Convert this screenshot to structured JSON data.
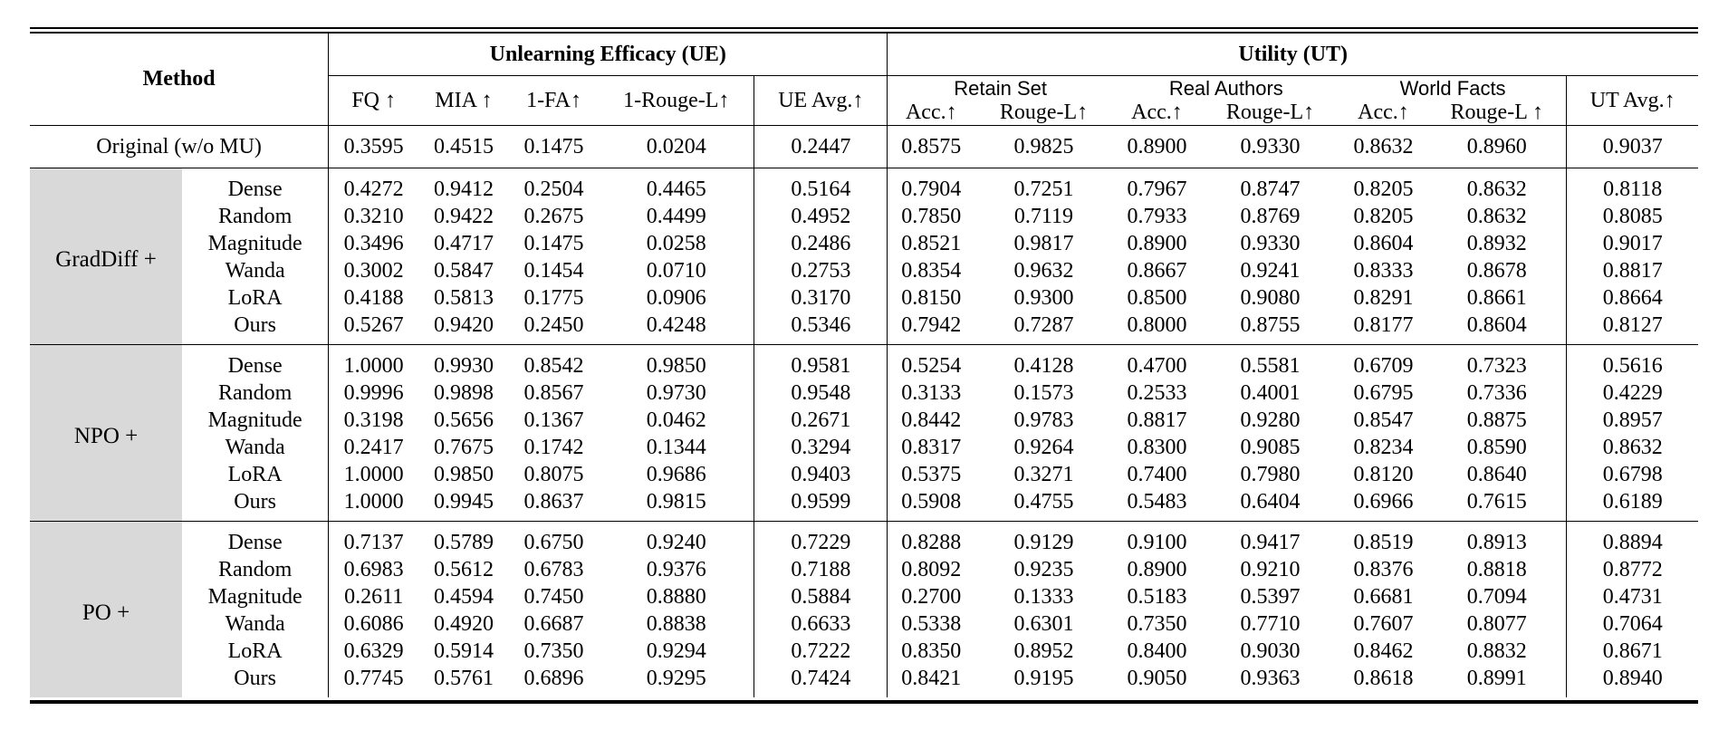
{
  "header": {
    "method": "Method",
    "ue_group": "Unlearning Efficacy (UE)",
    "ut_group": "Utility (UT)",
    "ue_cols": [
      "FQ ↑",
      "MIA ↑",
      "1-FA↑",
      "1-Rouge-L↑",
      "UE Avg.↑"
    ],
    "ut_groups": [
      "Retain Set",
      "Real Authors",
      "World Facts"
    ],
    "ut_subcols": [
      "Acc.↑",
      "Rouge-L↑",
      "Acc.↑",
      "Rouge-L↑",
      "Acc.↑",
      "Rouge-L ↑"
    ],
    "ut_avg": "UT Avg.↑"
  },
  "original": {
    "label": "Original (w/o MU)",
    "values": [
      "0.3595",
      "0.4515",
      "0.1475",
      "0.0204",
      "0.2447",
      "0.8575",
      "0.9825",
      "0.8900",
      "0.9330",
      "0.8632",
      "0.8960",
      "0.9037"
    ]
  },
  "blocks": [
    {
      "prefix": "GradDiff +",
      "rows": [
        {
          "variant": "Dense",
          "values": [
            "0.4272",
            "0.9412",
            "0.2504",
            "0.4465",
            "0.5164",
            "0.7904",
            "0.7251",
            "0.7967",
            "0.8747",
            "0.8205",
            "0.8632",
            "0.8118"
          ],
          "bold": []
        },
        {
          "variant": "Random",
          "values": [
            "0.3210",
            "0.9422",
            "0.2675",
            "0.4499",
            "0.4952",
            "0.7850",
            "0.7119",
            "0.7933",
            "0.8769",
            "0.8205",
            "0.8632",
            "0.8085"
          ],
          "bold": []
        },
        {
          "variant": "Magnitude",
          "values": [
            "0.3496",
            "0.4717",
            "0.1475",
            "0.0258",
            "0.2486",
            "0.8521",
            "0.9817",
            "0.8900",
            "0.9330",
            "0.8604",
            "0.8932",
            "0.9017"
          ],
          "bold": [
            11
          ]
        },
        {
          "variant": "Wanda",
          "values": [
            "0.3002",
            "0.5847",
            "0.1454",
            "0.0710",
            "0.2753",
            "0.8354",
            "0.9632",
            "0.8667",
            "0.9241",
            "0.8333",
            "0.8678",
            "0.8817"
          ],
          "bold": []
        },
        {
          "variant": "LoRA",
          "values": [
            "0.4188",
            "0.5813",
            "0.1775",
            "0.0906",
            "0.3170",
            "0.8150",
            "0.9300",
            "0.8500",
            "0.9080",
            "0.8291",
            "0.8661",
            "0.8664"
          ],
          "bold": []
        },
        {
          "variant": "Ours",
          "values": [
            "0.5267",
            "0.9420",
            "0.2450",
            "0.4248",
            "0.5346",
            "0.7942",
            "0.7287",
            "0.8000",
            "0.8755",
            "0.8177",
            "0.8604",
            "0.8127"
          ],
          "bold": [
            4
          ]
        }
      ]
    },
    {
      "prefix": "NPO +",
      "rows": [
        {
          "variant": "Dense",
          "values": [
            "1.0000",
            "0.9930",
            "0.8542",
            "0.9850",
            "0.9581",
            "0.5254",
            "0.4128",
            "0.4700",
            "0.5581",
            "0.6709",
            "0.7323",
            "0.5616"
          ],
          "bold": []
        },
        {
          "variant": "Random",
          "values": [
            "0.9996",
            "0.9898",
            "0.8567",
            "0.9730",
            "0.9548",
            "0.3133",
            "0.1573",
            "0.2533",
            "0.4001",
            "0.6795",
            "0.7336",
            "0.4229"
          ],
          "bold": []
        },
        {
          "variant": "Magnitude",
          "values": [
            "0.3198",
            "0.5656",
            "0.1367",
            "0.0462",
            "0.2671",
            "0.8442",
            "0.9783",
            "0.8817",
            "0.9280",
            "0.8547",
            "0.8875",
            "0.8957"
          ],
          "bold": [
            11
          ]
        },
        {
          "variant": "Wanda",
          "values": [
            "0.2417",
            "0.7675",
            "0.1742",
            "0.1344",
            "0.3294",
            "0.8317",
            "0.9264",
            "0.8300",
            "0.9085",
            "0.8234",
            "0.8590",
            "0.8632"
          ],
          "bold": []
        },
        {
          "variant": "LoRA",
          "values": [
            "1.0000",
            "0.9850",
            "0.8075",
            "0.9686",
            "0.9403",
            "0.5375",
            "0.3271",
            "0.7400",
            "0.7980",
            "0.8120",
            "0.8640",
            "0.6798"
          ],
          "bold": []
        },
        {
          "variant": "Ours",
          "values": [
            "1.0000",
            "0.9945",
            "0.8637",
            "0.9815",
            "0.9599",
            "0.5908",
            "0.4755",
            "0.5483",
            "0.6404",
            "0.6966",
            "0.7615",
            "0.6189"
          ],
          "bold": [
            4
          ]
        }
      ]
    },
    {
      "prefix": "PO +",
      "rows": [
        {
          "variant": "Dense",
          "values": [
            "0.7137",
            "0.5789",
            "0.6750",
            "0.9240",
            "0.7229",
            "0.8288",
            "0.9129",
            "0.9100",
            "0.9417",
            "0.8519",
            "0.8913",
            "0.8894"
          ],
          "bold": []
        },
        {
          "variant": "Random",
          "values": [
            "0.6983",
            "0.5612",
            "0.6783",
            "0.9376",
            "0.7188",
            "0.8092",
            "0.9235",
            "0.8900",
            "0.9210",
            "0.8376",
            "0.8818",
            "0.8772"
          ],
          "bold": []
        },
        {
          "variant": "Magnitude",
          "values": [
            "0.2611",
            "0.4594",
            "0.7450",
            "0.8880",
            "0.5884",
            "0.2700",
            "0.1333",
            "0.5183",
            "0.5397",
            "0.6681",
            "0.7094",
            "0.4731"
          ],
          "bold": []
        },
        {
          "variant": "Wanda",
          "values": [
            "0.6086",
            "0.4920",
            "0.6687",
            "0.8838",
            "0.6633",
            "0.5338",
            "0.6301",
            "0.7350",
            "0.7710",
            "0.7607",
            "0.8077",
            "0.7064"
          ],
          "bold": []
        },
        {
          "variant": "LoRA",
          "values": [
            "0.6329",
            "0.5914",
            "0.7350",
            "0.9294",
            "0.7222",
            "0.8350",
            "0.8952",
            "0.8400",
            "0.9030",
            "0.8462",
            "0.8832",
            "0.8671"
          ],
          "bold": []
        },
        {
          "variant": "Ours",
          "values": [
            "0.7745",
            "0.5761",
            "0.6896",
            "0.9295",
            "0.7424",
            "0.8421",
            "0.9195",
            "0.9050",
            "0.9363",
            "0.8618",
            "0.8991",
            "0.8940"
          ],
          "bold": [
            4,
            11
          ]
        }
      ]
    }
  ]
}
